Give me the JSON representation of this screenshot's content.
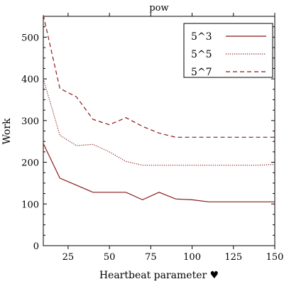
{
  "chart_data": {
    "type": "line",
    "title": "pow",
    "xlabel": "Heartbeat parameter ♥",
    "ylabel": "Work",
    "xlim": [
      10,
      150
    ],
    "ylim": [
      0,
      550
    ],
    "xticks": [
      25,
      50,
      75,
      100,
      125,
      150
    ],
    "yticks": [
      0,
      100,
      200,
      300,
      400,
      500
    ],
    "grid": false,
    "legend_position": "top-right",
    "line_color": "#8b1a1a",
    "series": [
      {
        "name": "5^3",
        "style": "solid",
        "x": [
          10,
          20,
          30,
          40,
          50,
          60,
          70,
          80,
          90,
          100,
          110,
          120,
          130,
          140,
          150
        ],
        "y": [
          245,
          162,
          145,
          128,
          128,
          128,
          110,
          128,
          112,
          110,
          105,
          105,
          105,
          105,
          105
        ]
      },
      {
        "name": "5^5",
        "style": "dotted",
        "x": [
          10,
          20,
          30,
          40,
          50,
          60,
          70,
          80,
          90,
          100,
          110,
          120,
          130,
          140,
          150
        ],
        "y": [
          400,
          265,
          240,
          243,
          225,
          202,
          193,
          193,
          193,
          193,
          193,
          193,
          193,
          193,
          195
        ]
      },
      {
        "name": "5^7",
        "style": "dashed",
        "x": [
          10,
          20,
          30,
          40,
          50,
          60,
          70,
          80,
          90,
          100,
          110,
          120,
          130,
          140,
          150
        ],
        "y": [
          553,
          377,
          357,
          303,
          290,
          307,
          286,
          270,
          260,
          260,
          260,
          260,
          260,
          260,
          260
        ]
      }
    ]
  }
}
